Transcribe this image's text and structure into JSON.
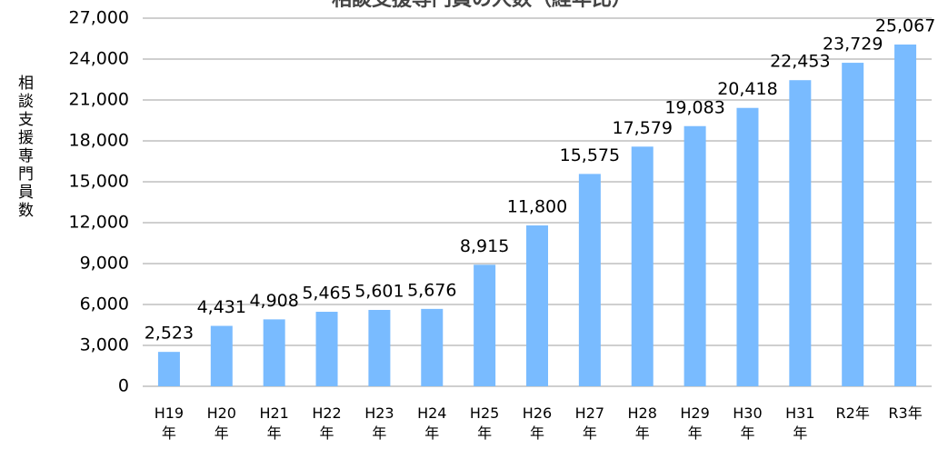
{
  "chart_data": {
    "type": "bar",
    "title": "相談支援専門員の人数（経年比）",
    "y_label": "相談支援専門員数",
    "categories": [
      "H19年",
      "H20年",
      "H21年",
      "H22年",
      "H23年",
      "H24年",
      "H25年",
      "H26年",
      "H27年",
      "H28年",
      "H29年",
      "H30年",
      "H31年",
      "R2年",
      "R3年"
    ],
    "values": [
      2523,
      4431,
      4908,
      5465,
      5601,
      5676,
      8915,
      11800,
      15575,
      17579,
      19083,
      20418,
      22453,
      23729,
      25067
    ],
    "value_labels": [
      "2,523",
      "4,431",
      "4,908",
      "5,465",
      "5,601",
      "5,676",
      "8,915",
      "11,800",
      "15,575",
      "17,579",
      "19,083",
      "20,418",
      "22,453",
      "23,729",
      "25,067"
    ],
    "color": "#79bbff",
    "ylim": [
      0,
      27000
    ],
    "yticks": [
      0,
      {
        "value": 3000,
        "label": "3,000"
      },
      {
        "value": 6000,
        "label": "6,000"
      },
      {
        "value": 9000,
        "label": "9,000"
      },
      {
        "value": 12000,
        "label": "12,000"
      },
      {
        "value": 15000,
        "label": "15,000"
      },
      {
        "value": 18000,
        "label": "18,000"
      },
      {
        "value": 21000,
        "label": "21,000"
      },
      {
        "value": 24000,
        "label": "24,000"
      },
      {
        "value": 27000,
        "label": "27,000"
      }
    ],
    "grid": true
  }
}
